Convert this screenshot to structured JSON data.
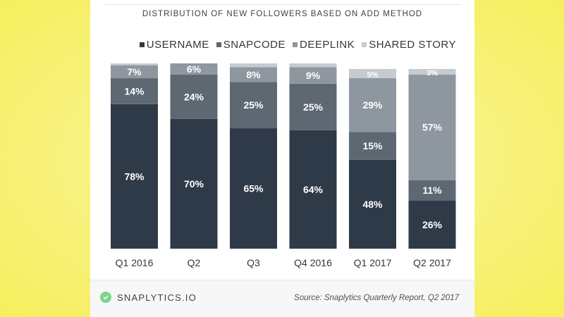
{
  "colors": {
    "username": "#2f3a48",
    "snapcode": "#5d6873",
    "deeplink": "#8e979f",
    "shared_story": "#c6cbd0",
    "brand": "#7ed38d"
  },
  "footer": {
    "brand": "SNAPLYTICS.IO",
    "source": "Source: Snaplytics Quarterly Report, Q2 2017"
  },
  "chart_data": {
    "type": "bar",
    "stacked": true,
    "title": "DISTRIBUTION OF NEW FOLLOWERS BASED ON ADD METHOD",
    "categories": [
      "Q1 2016",
      "Q2",
      "Q3",
      "Q4 2016",
      "Q1 2017",
      "Q2 2017"
    ],
    "series": [
      {
        "name": "USERNAME",
        "values": [
          78,
          70,
          65,
          64,
          48,
          26
        ]
      },
      {
        "name": "SNAPCODE",
        "values": [
          14,
          24,
          25,
          25,
          15,
          11
        ]
      },
      {
        "name": "DEEPLINK",
        "values": [
          7,
          6,
          8,
          9,
          29,
          57
        ]
      },
      {
        "name": "SHARED STORY",
        "values": [
          1,
          0,
          2,
          2,
          5,
          3
        ]
      }
    ],
    "data_labels": [
      [
        "78%",
        "14%",
        "7%",
        ""
      ],
      [
        "70%",
        "24%",
        "6%",
        ""
      ],
      [
        "65%",
        "25%",
        "8%",
        ""
      ],
      [
        "64%",
        "25%",
        "9%",
        ""
      ],
      [
        "48%",
        "15%",
        "29%",
        "5%"
      ],
      [
        "26%",
        "11%",
        "57%",
        "3%"
      ]
    ],
    "ylim": [
      0,
      100
    ],
    "legend_position": "top-right",
    "grid": false
  }
}
